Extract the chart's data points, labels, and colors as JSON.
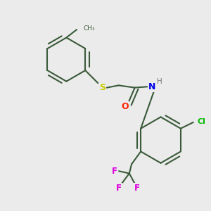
{
  "background_color": "#ebebeb",
  "bond_color": "#3a5a3a",
  "atom_colors": {
    "S": "#cccc00",
    "O": "#ff2200",
    "N": "#0000ee",
    "H": "#888888",
    "Cl": "#00bb00",
    "F": "#dd00dd",
    "C": "#3a5a3a"
  },
  "figsize": [
    3.0,
    3.0
  ],
  "dpi": 100
}
